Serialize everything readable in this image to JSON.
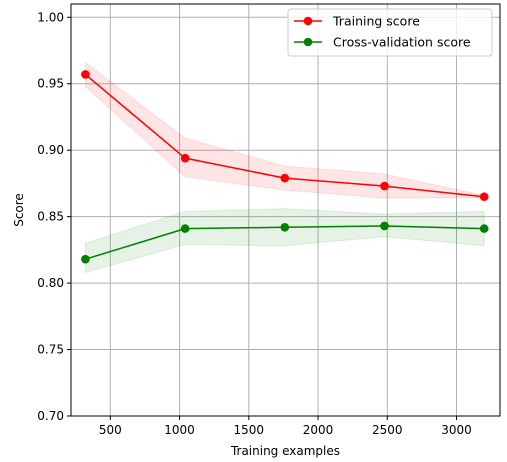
{
  "chart_data": {
    "type": "line",
    "title": "",
    "xlabel": "Training examples",
    "ylabel": "Score",
    "xlim": [
      216,
      3314
    ],
    "ylim": [
      0.7,
      1.01
    ],
    "xticks": [
      500,
      1000,
      1500,
      2000,
      2500,
      3000
    ],
    "yticks": [
      0.7,
      0.75,
      0.8,
      0.85,
      0.9,
      0.95,
      1.0
    ],
    "xtick_labels": [
      "500",
      "1000",
      "1500",
      "2000",
      "2500",
      "3000"
    ],
    "ytick_labels": [
      "0.70",
      "0.75",
      "0.80",
      "0.85",
      "0.90",
      "0.95",
      "1.00"
    ],
    "grid": true,
    "legend_position": "top-right",
    "x": [
      320,
      1040,
      1760,
      2480,
      3200
    ],
    "series": [
      {
        "name": "Training score",
        "color": "#ff0000",
        "band_color": "#ff0000",
        "values": [
          0.957,
          0.894,
          0.879,
          0.873,
          0.865
        ],
        "band_upper": [
          0.966,
          0.909,
          0.888,
          0.882,
          0.866
        ],
        "band_lower": [
          0.948,
          0.88,
          0.87,
          0.864,
          0.864
        ]
      },
      {
        "name": "Cross-validation score",
        "color": "#008000",
        "band_color": "#008000",
        "values": [
          0.818,
          0.841,
          0.842,
          0.843,
          0.841
        ],
        "band_upper": [
          0.83,
          0.854,
          0.856,
          0.852,
          0.854
        ],
        "band_lower": [
          0.808,
          0.829,
          0.828,
          0.835,
          0.828
        ]
      }
    ]
  }
}
